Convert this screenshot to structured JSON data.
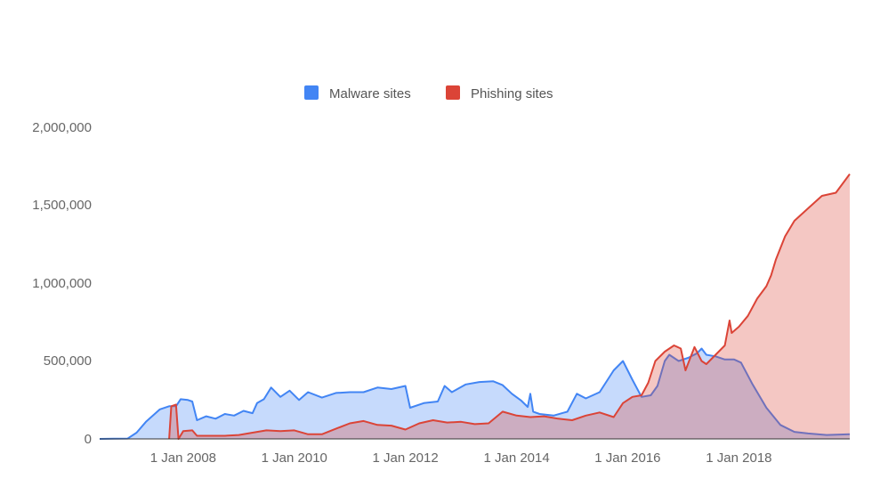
{
  "chart_data": {
    "type": "area",
    "title": "",
    "xlabel": "",
    "ylabel": "",
    "ylim": [
      0,
      2000000
    ],
    "xlim": [
      "2006-07-01",
      "2019-12-31"
    ],
    "grid": false,
    "legend_position": "top-center",
    "y_ticks": [
      "0",
      "500,000",
      "1,000,000",
      "1,500,000",
      "2,000,000"
    ],
    "x_ticks": [
      {
        "date": "2008-01-01",
        "label": "1 Jan 2008"
      },
      {
        "date": "2010-01-01",
        "label": "1 Jan 2010"
      },
      {
        "date": "2012-01-01",
        "label": "1 Jan 2012"
      },
      {
        "date": "2014-01-01",
        "label": "1 Jan 2014"
      },
      {
        "date": "2016-01-01",
        "label": "1 Jan 2016"
      },
      {
        "date": "2018-01-01",
        "label": "1 Jan 2018"
      }
    ],
    "series": [
      {
        "name": "Malware sites",
        "color": "#4285f4",
        "fill": "#c6dafa",
        "points": [
          [
            "2006-07-01",
            0
          ],
          [
            "2007-01-01",
            2000
          ],
          [
            "2007-03-01",
            40000
          ],
          [
            "2007-05-01",
            110000
          ],
          [
            "2007-08-01",
            190000
          ],
          [
            "2007-10-01",
            210000
          ],
          [
            "2007-11-15",
            210000
          ],
          [
            "2007-12-15",
            255000
          ],
          [
            "2008-02-01",
            250000
          ],
          [
            "2008-03-01",
            240000
          ],
          [
            "2008-04-01",
            120000
          ],
          [
            "2008-06-01",
            145000
          ],
          [
            "2008-08-01",
            130000
          ],
          [
            "2008-10-01",
            160000
          ],
          [
            "2008-12-01",
            150000
          ],
          [
            "2009-02-01",
            180000
          ],
          [
            "2009-04-01",
            165000
          ],
          [
            "2009-05-01",
            230000
          ],
          [
            "2009-06-15",
            255000
          ],
          [
            "2009-08-01",
            330000
          ],
          [
            "2009-10-01",
            270000
          ],
          [
            "2009-12-01",
            310000
          ],
          [
            "2010-02-01",
            250000
          ],
          [
            "2010-04-01",
            300000
          ],
          [
            "2010-07-01",
            265000
          ],
          [
            "2010-10-01",
            295000
          ],
          [
            "2011-01-01",
            300000
          ],
          [
            "2011-04-01",
            300000
          ],
          [
            "2011-07-01",
            330000
          ],
          [
            "2011-10-01",
            320000
          ],
          [
            "2012-01-01",
            340000
          ],
          [
            "2012-02-01",
            200000
          ],
          [
            "2012-05-01",
            230000
          ],
          [
            "2012-08-01",
            240000
          ],
          [
            "2012-09-15",
            340000
          ],
          [
            "2012-11-01",
            300000
          ],
          [
            "2013-02-01",
            350000
          ],
          [
            "2013-05-01",
            365000
          ],
          [
            "2013-08-01",
            370000
          ],
          [
            "2013-10-01",
            345000
          ],
          [
            "2013-12-01",
            290000
          ],
          [
            "2014-02-01",
            245000
          ],
          [
            "2014-03-15",
            205000
          ],
          [
            "2014-04-01",
            290000
          ],
          [
            "2014-04-20",
            175000
          ],
          [
            "2014-06-01",
            160000
          ],
          [
            "2014-09-01",
            150000
          ],
          [
            "2014-12-01",
            175000
          ],
          [
            "2015-02-01",
            290000
          ],
          [
            "2015-04-01",
            260000
          ],
          [
            "2015-07-01",
            300000
          ],
          [
            "2015-10-01",
            440000
          ],
          [
            "2015-12-01",
            500000
          ],
          [
            "2016-02-01",
            380000
          ],
          [
            "2016-04-01",
            270000
          ],
          [
            "2016-06-01",
            280000
          ],
          [
            "2016-07-15",
            340000
          ],
          [
            "2016-09-01",
            500000
          ],
          [
            "2016-10-01",
            540000
          ],
          [
            "2016-12-01",
            500000
          ],
          [
            "2017-02-01",
            520000
          ],
          [
            "2017-04-01",
            550000
          ],
          [
            "2017-05-01",
            580000
          ],
          [
            "2017-06-01",
            540000
          ],
          [
            "2017-08-01",
            530000
          ],
          [
            "2017-10-01",
            510000
          ],
          [
            "2017-12-01",
            510000
          ],
          [
            "2018-01-15",
            490000
          ],
          [
            "2018-04-01",
            350000
          ],
          [
            "2018-07-01",
            200000
          ],
          [
            "2018-10-01",
            90000
          ],
          [
            "2019-01-01",
            45000
          ],
          [
            "2019-04-01",
            35000
          ],
          [
            "2019-08-01",
            25000
          ],
          [
            "2019-12-31",
            30000
          ]
        ]
      },
      {
        "name": "Phishing sites",
        "color": "#db4437",
        "fill": "#f4c1bb",
        "points": [
          [
            "2007-10-01",
            0
          ],
          [
            "2007-10-15",
            210000
          ],
          [
            "2007-11-15",
            220000
          ],
          [
            "2007-12-01",
            0
          ],
          [
            "2008-01-01",
            50000
          ],
          [
            "2008-03-01",
            55000
          ],
          [
            "2008-04-01",
            20000
          ],
          [
            "2008-07-01",
            20000
          ],
          [
            "2008-10-01",
            20000
          ],
          [
            "2009-01-01",
            25000
          ],
          [
            "2009-04-01",
            40000
          ],
          [
            "2009-07-01",
            55000
          ],
          [
            "2009-10-01",
            50000
          ],
          [
            "2010-01-01",
            55000
          ],
          [
            "2010-04-01",
            30000
          ],
          [
            "2010-07-01",
            30000
          ],
          [
            "2010-10-01",
            65000
          ],
          [
            "2011-01-01",
            100000
          ],
          [
            "2011-04-01",
            115000
          ],
          [
            "2011-07-01",
            90000
          ],
          [
            "2011-10-01",
            85000
          ],
          [
            "2012-01-01",
            60000
          ],
          [
            "2012-04-01",
            100000
          ],
          [
            "2012-07-01",
            120000
          ],
          [
            "2012-10-01",
            105000
          ],
          [
            "2013-01-01",
            110000
          ],
          [
            "2013-04-01",
            95000
          ],
          [
            "2013-07-01",
            100000
          ],
          [
            "2013-10-01",
            175000
          ],
          [
            "2014-01-01",
            150000
          ],
          [
            "2014-04-01",
            140000
          ],
          [
            "2014-07-01",
            145000
          ],
          [
            "2014-10-01",
            130000
          ],
          [
            "2015-01-01",
            120000
          ],
          [
            "2015-04-01",
            150000
          ],
          [
            "2015-07-01",
            170000
          ],
          [
            "2015-10-01",
            140000
          ],
          [
            "2015-12-01",
            230000
          ],
          [
            "2016-02-01",
            270000
          ],
          [
            "2016-04-01",
            280000
          ],
          [
            "2016-05-15",
            360000
          ],
          [
            "2016-07-01",
            500000
          ],
          [
            "2016-09-01",
            560000
          ],
          [
            "2016-11-01",
            600000
          ],
          [
            "2016-12-15",
            580000
          ],
          [
            "2017-01-15",
            440000
          ],
          [
            "2017-03-15",
            590000
          ],
          [
            "2017-05-01",
            500000
          ],
          [
            "2017-06-01",
            480000
          ],
          [
            "2017-08-01",
            540000
          ],
          [
            "2017-10-01",
            600000
          ],
          [
            "2017-11-01",
            760000
          ],
          [
            "2017-11-15",
            680000
          ],
          [
            "2018-01-01",
            720000
          ],
          [
            "2018-03-01",
            790000
          ],
          [
            "2018-05-01",
            900000
          ],
          [
            "2018-07-01",
            980000
          ],
          [
            "2018-08-01",
            1050000
          ],
          [
            "2018-09-01",
            1150000
          ],
          [
            "2018-11-01",
            1300000
          ],
          [
            "2019-01-01",
            1400000
          ],
          [
            "2019-04-01",
            1480000
          ],
          [
            "2019-07-01",
            1560000
          ],
          [
            "2019-10-01",
            1580000
          ],
          [
            "2019-12-31",
            1700000
          ]
        ]
      }
    ]
  }
}
